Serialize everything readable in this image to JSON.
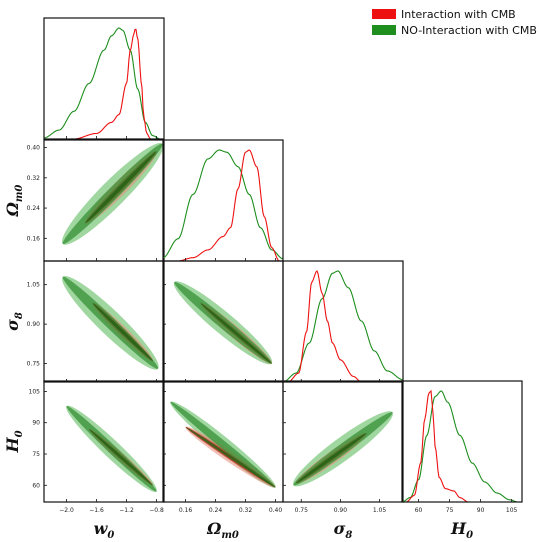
{
  "colors": {
    "interaction": "#ee1111",
    "no_interaction": "#1e8e1e"
  },
  "legend": {
    "placement": "top-right",
    "entries": [
      {
        "label": "Interaction with CMB",
        "color": "#ee1111"
      },
      {
        "label": "NO-Interaction with CMB",
        "color": "#1e8e1e"
      }
    ]
  },
  "chart_data": {
    "type": "triangle",
    "params": [
      "w0",
      "Omega_m0",
      "sigma8",
      "H0"
    ],
    "axis_labels": {
      "w0": {
        "base": "w",
        "sub": "0"
      },
      "Omega_m0": {
        "base": "Ω",
        "sub": "m0"
      },
      "sigma8": {
        "base": "σ",
        "sub": "8"
      },
      "H0": {
        "base": "H",
        "sub": "0"
      }
    },
    "ranges": {
      "w0": [
        -2.3,
        -0.7
      ],
      "Omega_m0": [
        0.1,
        0.42
      ],
      "sigma8": [
        0.68,
        1.14
      ],
      "H0": [
        52,
        110
      ]
    },
    "ticks": {
      "w0": {
        "values": [
          -2.0,
          -1.6,
          -1.2,
          -0.8
        ],
        "labels": [
          "−2.0",
          "−1.6",
          "−1.2",
          "−0.8"
        ]
      },
      "Omega_m0": {
        "values": [
          0.16,
          0.24,
          0.32,
          0.4
        ],
        "labels": [
          "0.16",
          "0.24",
          "0.32",
          "0.40"
        ]
      },
      "sigma8": {
        "values": [
          0.75,
          0.9,
          1.05
        ],
        "labels": [
          "0.75",
          "0.90",
          "1.05"
        ]
      },
      "H0": {
        "values": [
          60,
          75,
          90,
          105
        ],
        "labels": [
          "60",
          "75",
          "90",
          "105"
        ]
      }
    },
    "marginals": {
      "w0": {
        "no_interaction": {
          "x": [
            -2.3,
            -2.1,
            -1.9,
            -1.7,
            -1.5,
            -1.4,
            -1.3,
            -1.25,
            -1.15,
            -1.05,
            -0.95,
            -0.85,
            -0.75
          ],
          "y": [
            0.01,
            0.08,
            0.25,
            0.5,
            0.8,
            0.93,
            1.0,
            0.98,
            0.8,
            0.45,
            0.15,
            0.03,
            0.0
          ]
        },
        "interaction": {
          "x": [
            -1.9,
            -1.6,
            -1.4,
            -1.3,
            -1.2,
            -1.15,
            -1.1,
            -1.08,
            -1.05,
            -1.0,
            -0.97,
            -0.93,
            -0.88
          ],
          "y": [
            0.0,
            0.05,
            0.15,
            0.22,
            0.5,
            0.8,
            0.95,
            1.0,
            0.9,
            0.5,
            0.2,
            0.05,
            0.0
          ]
        }
      },
      "Omega_m0": {
        "no_interaction": {
          "x": [
            0.1,
            0.14,
            0.18,
            0.22,
            0.25,
            0.27,
            0.3,
            0.33,
            0.36,
            0.39,
            0.42
          ],
          "y": [
            0.03,
            0.2,
            0.6,
            0.92,
            1.0,
            0.98,
            0.85,
            0.6,
            0.3,
            0.1,
            0.02
          ]
        },
        "interaction": {
          "x": [
            0.14,
            0.18,
            0.22,
            0.26,
            0.28,
            0.3,
            0.32,
            0.33,
            0.35,
            0.37,
            0.39,
            0.41
          ],
          "y": [
            0.0,
            0.03,
            0.1,
            0.22,
            0.3,
            0.65,
            0.98,
            1.0,
            0.85,
            0.4,
            0.12,
            0.0
          ]
        }
      },
      "sigma8": {
        "no_interaction": {
          "x": [
            0.68,
            0.73,
            0.78,
            0.83,
            0.87,
            0.89,
            0.93,
            0.98,
            1.03,
            1.08,
            1.14
          ],
          "y": [
            0.0,
            0.08,
            0.35,
            0.75,
            0.98,
            1.0,
            0.85,
            0.55,
            0.28,
            0.1,
            0.02
          ]
        },
        "interaction": {
          "x": [
            0.7,
            0.74,
            0.77,
            0.79,
            0.81,
            0.83,
            0.85,
            0.87,
            0.9,
            0.95,
            0.98
          ],
          "y": [
            0.0,
            0.08,
            0.45,
            0.9,
            1.0,
            0.8,
            0.55,
            0.35,
            0.2,
            0.05,
            0.0
          ]
        }
      },
      "H0": {
        "no_interaction": {
          "x": [
            52,
            56,
            60,
            64,
            68,
            71,
            74,
            80,
            86,
            92,
            98,
            104,
            108
          ],
          "y": [
            0.0,
            0.04,
            0.2,
            0.6,
            0.95,
            1.0,
            0.9,
            0.6,
            0.35,
            0.18,
            0.08,
            0.02,
            0.0
          ]
        },
        "interaction": {
          "x": [
            54,
            58,
            61,
            63,
            65,
            66,
            67,
            68,
            70,
            73,
            77,
            80,
            84
          ],
          "y": [
            0.0,
            0.06,
            0.35,
            0.75,
            0.98,
            1.0,
            0.8,
            0.5,
            0.22,
            0.12,
            0.1,
            0.04,
            0.0
          ]
        }
      }
    },
    "contours": [
      {
        "x": "w0",
        "y": "Omega_m0",
        "no_interaction": {
          "center": [
            -1.38,
            0.27
          ],
          "end1": [
            -2.05,
            0.145
          ],
          "end2": [
            -0.72,
            0.41
          ],
          "width_95": 0.13,
          "width_68": 0.06
        },
        "interaction": {
          "center": [
            -1.22,
            0.3
          ],
          "end1": [
            -1.75,
            0.2
          ],
          "end2": [
            -0.8,
            0.39
          ],
          "width_95": 0.1,
          "width_68": 0.05
        }
      },
      {
        "x": "w0",
        "y": "sigma8",
        "no_interaction": {
          "center": [
            -1.4,
            0.92
          ],
          "end1": [
            -2.05,
            1.08
          ],
          "end2": [
            -0.78,
            0.73
          ],
          "width_95": 0.13,
          "width_68": 0.06
        },
        "interaction": {
          "center": [
            -1.25,
            0.88
          ],
          "end1": [
            -1.65,
            0.98
          ],
          "end2": [
            -0.85,
            0.76
          ],
          "width_95": 0.09,
          "width_68": 0.05
        }
      },
      {
        "x": "Omega_m0",
        "y": "sigma8",
        "no_interaction": {
          "center": [
            0.26,
            0.92
          ],
          "end1": [
            0.13,
            1.06
          ],
          "end2": [
            0.39,
            0.75
          ],
          "width_95": 0.12,
          "width_68": 0.06
        },
        "interaction": {
          "center": [
            0.29,
            0.88
          ],
          "end1": [
            0.2,
            0.98
          ],
          "end2": [
            0.39,
            0.75
          ],
          "width_95": 0.09,
          "width_68": 0.04
        }
      },
      {
        "x": "w0",
        "y": "H0",
        "no_interaction": {
          "center": [
            -1.35,
            77
          ],
          "end1": [
            -2.0,
            98
          ],
          "end2": [
            -0.8,
            57
          ],
          "width_95": 0.1,
          "width_68": 0.05
        },
        "interaction": {
          "center": [
            -1.3,
            75
          ],
          "end1": [
            -1.7,
            87
          ],
          "end2": [
            -0.85,
            60
          ],
          "width_95": 0.07,
          "width_68": 0.04
        }
      },
      {
        "x": "Omega_m0",
        "y": "H0",
        "no_interaction": {
          "center": [
            0.25,
            78
          ],
          "end1": [
            0.12,
            100
          ],
          "end2": [
            0.4,
            59
          ],
          "width_95": 0.08,
          "width_68": 0.04
        },
        "interaction": {
          "center": [
            0.26,
            76
          ],
          "end1": [
            0.16,
            88
          ],
          "end2": [
            0.4,
            59
          ],
          "width_95": 0.07,
          "width_68": 0.035
        }
      },
      {
        "x": "sigma8",
        "y": "H0",
        "no_interaction": {
          "center": [
            0.9,
            77
          ],
          "end1": [
            0.72,
            60
          ],
          "end2": [
            1.1,
            95
          ],
          "width_95": 0.13,
          "width_68": 0.06
        },
        "interaction": {
          "center": [
            0.86,
            72
          ],
          "end1": [
            0.73,
            61
          ],
          "end2": [
            1.0,
            85
          ],
          "width_95": 0.1,
          "width_68": 0.05
        }
      }
    ]
  }
}
